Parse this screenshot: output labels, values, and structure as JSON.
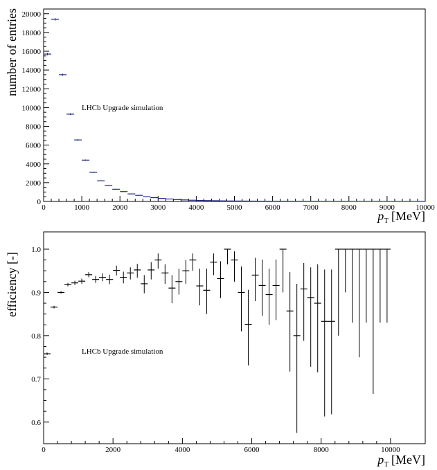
{
  "chart_data": [
    {
      "type": "histogram",
      "title": "",
      "xlabel_main": "p",
      "xlabel_sub": "T",
      "xlabel_unit": "[MeV]",
      "ylabel": "number of entries",
      "annotation": "LHCb Upgrade simulation",
      "xlim": [
        0,
        10000
      ],
      "ylim": [
        0,
        20500
      ],
      "x_ticks": [
        0,
        1000,
        2000,
        3000,
        4000,
        5000,
        6000,
        7000,
        8000,
        9000,
        10000
      ],
      "y_ticks": [
        0,
        2000,
        4000,
        6000,
        8000,
        10000,
        12000,
        14000,
        16000,
        18000,
        20000
      ],
      "bin_width": 200,
      "x": [
        100,
        300,
        500,
        700,
        900,
        1100,
        1300,
        1500,
        1700,
        1900,
        2100,
        2300,
        2500,
        2700,
        2900,
        3100,
        3300,
        3500,
        3700,
        3900,
        4100,
        4300,
        4500,
        4700,
        4900,
        5100,
        5300,
        5500,
        5700,
        5900,
        6100,
        6300,
        6500,
        6700,
        6900,
        7100,
        7300,
        7500,
        7700,
        7900,
        8100,
        8300,
        8500,
        8700,
        8900,
        9100,
        9300,
        9500,
        9700,
        9900
      ],
      "values": [
        15700,
        19400,
        13500,
        9300,
        6550,
        4400,
        3100,
        2200,
        1700,
        1300,
        1050,
        800,
        650,
        500,
        400,
        320,
        260,
        200,
        160,
        130,
        110,
        90,
        75,
        60,
        50,
        45,
        40,
        35,
        30,
        28,
        25,
        22,
        20,
        18,
        16,
        15,
        14,
        13,
        12,
        11,
        10,
        10,
        9,
        9,
        8,
        8,
        7,
        7,
        6,
        6
      ]
    },
    {
      "type": "scatter-errorbar",
      "title": "",
      "xlabel_main": "p",
      "xlabel_sub": "T",
      "xlabel_unit": "[MeV]",
      "ylabel": "efficiency [-]",
      "annotation": "LHCb Upgrade simulation",
      "xlim": [
        0,
        11000
      ],
      "ylim": [
        0.55,
        1.04
      ],
      "x_ticks": [
        0,
        2000,
        4000,
        6000,
        8000,
        10000
      ],
      "y_ticks": [
        0.6,
        0.7,
        0.8,
        0.9,
        1.0
      ],
      "bin_width": 200,
      "x": [
        100,
        300,
        500,
        700,
        900,
        1100,
        1300,
        1500,
        1700,
        1900,
        2100,
        2300,
        2500,
        2700,
        2900,
        3100,
        3300,
        3500,
        3700,
        3900,
        4100,
        4300,
        4500,
        4700,
        4900,
        5100,
        5300,
        5500,
        5700,
        5900,
        6100,
        6300,
        6500,
        6700,
        6900,
        7100,
        7300,
        7500,
        7700,
        7900,
        8100,
        8300,
        8500,
        8700,
        8900,
        9100,
        9300,
        9500,
        9700,
        9900
      ],
      "values": [
        0.758,
        0.866,
        0.9,
        0.918,
        0.922,
        0.926,
        0.941,
        0.93,
        0.935,
        0.93,
        0.951,
        0.935,
        0.945,
        0.952,
        0.92,
        0.952,
        0.975,
        0.945,
        0.91,
        0.925,
        0.95,
        0.975,
        0.915,
        0.905,
        0.97,
        0.932,
        1.0,
        0.975,
        0.9,
        0.826,
        0.94,
        0.916,
        0.895,
        0.916,
        1.0,
        0.857,
        0.8,
        0.908,
        0.888,
        0.875,
        0.833,
        0.833,
        1.0,
        1.0,
        1.0,
        1.0,
        1.0,
        1.0,
        1.0,
        1.0
      ],
      "err_low": [
        0.003,
        0.003,
        0.003,
        0.004,
        0.005,
        0.006,
        0.006,
        0.008,
        0.009,
        0.011,
        0.012,
        0.014,
        0.015,
        0.018,
        0.022,
        0.022,
        0.02,
        0.025,
        0.035,
        0.03,
        0.03,
        0.025,
        0.045,
        0.055,
        0.03,
        0.045,
        0.035,
        0.05,
        0.09,
        0.095,
        0.06,
        0.07,
        0.07,
        0.08,
        0.1,
        0.14,
        0.225,
        0.12,
        0.16,
        0.16,
        0.22,
        0.215,
        0.2,
        0.1,
        0.17,
        0.25,
        0.17,
        0.335,
        0.17,
        0.17
      ],
      "err_high": [
        0.003,
        0.003,
        0.003,
        0.004,
        0.005,
        0.006,
        0.006,
        0.008,
        0.009,
        0.011,
        0.011,
        0.013,
        0.013,
        0.014,
        0.02,
        0.018,
        0.015,
        0.02,
        0.03,
        0.03,
        0.025,
        0.015,
        0.04,
        0.05,
        0.02,
        0.04,
        0.0,
        0.02,
        0.06,
        0.08,
        0.04,
        0.06,
        0.06,
        0.06,
        0.0,
        0.09,
        0.12,
        0.06,
        0.07,
        0.09,
        0.12,
        0.12,
        0.0,
        0.0,
        0.0,
        0.0,
        0.0,
        0.0,
        0.0,
        0.0
      ]
    }
  ]
}
